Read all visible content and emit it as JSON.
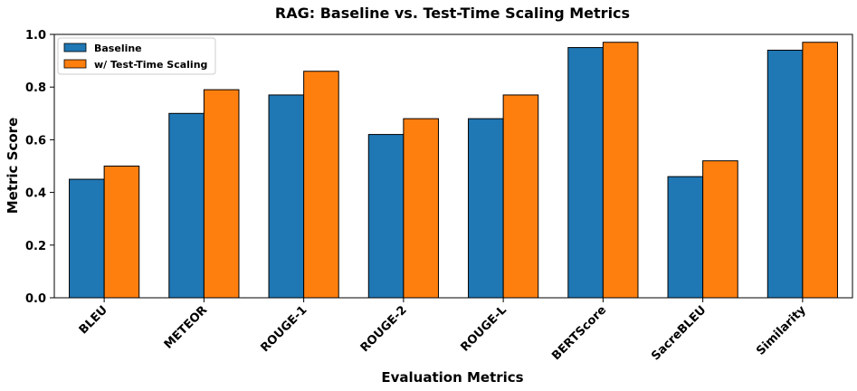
{
  "chart_data": {
    "type": "bar",
    "title": "RAG: Baseline vs. Test-Time Scaling Metrics",
    "xlabel": "Evaluation Metrics",
    "ylabel": "Metric Score",
    "categories": [
      "BLEU",
      "METEOR",
      "ROUGE-1",
      "ROUGE-2",
      "ROUGE-L",
      "BERTScore",
      "SacreBLEU",
      "Similarity"
    ],
    "series": [
      {
        "name": "Baseline",
        "color": "#1f77b4",
        "values": [
          0.45,
          0.7,
          0.77,
          0.62,
          0.68,
          0.95,
          0.46,
          0.94
        ]
      },
      {
        "name": "w/ Test-Time Scaling",
        "color": "#ff7f0e",
        "values": [
          0.5,
          0.79,
          0.86,
          0.68,
          0.77,
          0.97,
          0.52,
          0.97
        ]
      }
    ],
    "ylim": [
      0.0,
      1.0
    ],
    "yticks": [
      "0.0",
      "0.2",
      "0.4",
      "0.6",
      "0.8",
      "1.0"
    ],
    "legend": "top-left",
    "grid": false
  }
}
